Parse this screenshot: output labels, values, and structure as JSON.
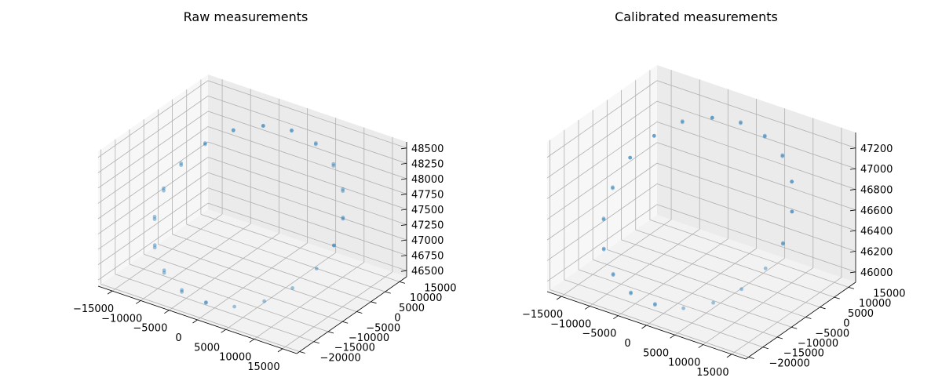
{
  "chart_data": [
    {
      "type": "scatter3d",
      "title": "Raw measurements",
      "color": "#1f77b4",
      "xlim": [
        -17500,
        17500
      ],
      "ylim": [
        -21000,
        17500
      ],
      "zlim": [
        46400,
        48600
      ],
      "x_ticks": [
        -15000,
        -10000,
        -5000,
        0,
        5000,
        10000,
        15000
      ],
      "x_tick_labels": [
        "−15000",
        "−10000",
        "−5000",
        "0",
        "5000",
        "10000",
        "15000"
      ],
      "y_ticks": [
        -20000,
        -15000,
        -10000,
        -5000,
        0,
        5000,
        10000,
        15000
      ],
      "y_tick_labels": [
        "−20000",
        "−15000",
        "−10000",
        "−5000",
        "0",
        "5000",
        "10000",
        "15000"
      ],
      "z_ticks": [
        46500,
        46750,
        47000,
        47250,
        47500,
        47750,
        48000,
        48250,
        48500
      ],
      "z_tick_labels": [
        "46500",
        "46750",
        "47000",
        "47250",
        "47500",
        "47750",
        "48000",
        "48250",
        "48500"
      ],
      "grid": true,
      "points": {
        "x": [
          15000,
          14266,
          12135,
          8817,
          4635,
          0,
          -4635,
          -8817,
          -12135,
          -14266,
          -15000,
          -14266,
          -12135,
          -8817,
          -4635,
          0,
          4635,
          8817,
          12135,
          14266,
          15000,
          14266,
          12135,
          8817,
          4635,
          0,
          -4635,
          -8817,
          -12135,
          -14266,
          -15000,
          -14266,
          -12135,
          -8817,
          -4635,
          0
        ],
        "y": [
          -3000,
          1635,
          5817,
          9135,
          11266,
          12000,
          11266,
          9135,
          5817,
          1635,
          -3000,
          -7635,
          -11817,
          -15135,
          -17266,
          -18000,
          -17266,
          -15135,
          -11817,
          -7635,
          -3000,
          1635,
          5817,
          9135,
          11266,
          12000,
          11266,
          9135,
          5817,
          1635,
          -3000,
          -7635,
          -11817,
          -15135,
          -17266,
          -18000
        ],
        "z": [
          47500,
          47780,
          48040,
          48240,
          48380,
          48420,
          48370,
          48230,
          48010,
          47740,
          47450,
          47160,
          46900,
          46700,
          46590,
          46580,
          46640,
          46790,
          47000,
          47250,
          47500,
          47760,
          48010,
          48210,
          48360,
          48410,
          48370,
          48240,
          48030,
          47770,
          47490,
          47200,
          46940,
          46740,
          46620,
          46590
        ]
      }
    },
    {
      "type": "scatter3d",
      "title": "Calibrated measurements",
      "color": "#1f77b4",
      "xlim": [
        -17500,
        17500
      ],
      "ylim": [
        -21000,
        17500
      ],
      "zlim": [
        45900,
        47350
      ],
      "x_ticks": [
        -15000,
        -10000,
        -5000,
        0,
        5000,
        10000,
        15000
      ],
      "x_tick_labels": [
        "−15000",
        "−10000",
        "−5000",
        "0",
        "5000",
        "10000",
        "15000"
      ],
      "y_ticks": [
        -20000,
        -15000,
        -10000,
        -5000,
        0,
        5000,
        10000,
        15000
      ],
      "y_tick_labels": [
        "−20000",
        "−15000",
        "−10000",
        "−5000",
        "0",
        "5000",
        "10000",
        "15000"
      ],
      "z_ticks": [
        46000,
        46200,
        46400,
        46600,
        46800,
        47000,
        47200
      ],
      "z_tick_labels": [
        "46000",
        "46200",
        "46400",
        "46600",
        "46800",
        "47000",
        "47200"
      ],
      "grid": true,
      "points": {
        "x": [
          15000,
          14266,
          12135,
          8817,
          4635,
          0,
          -4635,
          -8817,
          -12135,
          -14266,
          -15000,
          -14266,
          -12135,
          -8817,
          -4635,
          0,
          4635,
          8817,
          12135,
          14266,
          15000,
          14266,
          12135,
          8817,
          4635,
          0,
          -4635,
          -8817,
          -12135,
          -14266,
          -15000,
          -14266,
          -12135,
          -8817,
          -4635,
          0
        ],
        "y": [
          -3000,
          1635,
          5817,
          9135,
          11266,
          12000,
          11266,
          9135,
          5817,
          1635,
          -3000,
          -7635,
          -11817,
          -15135,
          -17266,
          -18000,
          -17266,
          -15135,
          -11817,
          -7635,
          -3000,
          1635,
          5817,
          9135,
          11266,
          12000,
          11266,
          9135,
          5817,
          1635,
          -3000,
          -7635,
          -11817,
          -15135,
          -17266,
          -18000
        ],
        "z": [
          46620,
          46830,
          47000,
          47130,
          47200,
          47230,
          47200,
          47120,
          46990,
          46820,
          46600,
          46400,
          46230,
          46110,
          46050,
          46040,
          46080,
          46170,
          46300,
          46460,
          46630,
          46830,
          47000,
          47120,
          47190,
          47220,
          47200,
          47130,
          46990,
          46820,
          46610,
          46410,
          46240,
          46120,
          46060,
          46050
        ]
      }
    }
  ]
}
